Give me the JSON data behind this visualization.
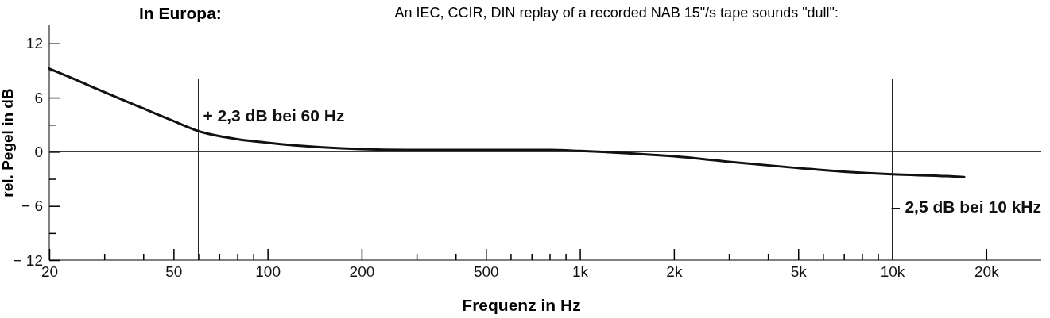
{
  "chart_data": {
    "type": "line",
    "title": "In Europa:",
    "subtitle": "An IEC, CCIR, DIN replay of a recorded NAB 15\"/s tape sounds \"dull\":",
    "xlabel": "Frequenz in Hz",
    "ylabel": "rel. Pegel in dB",
    "log": "x",
    "x": [
      20,
      25,
      30,
      40,
      50,
      60,
      80,
      100,
      150,
      200,
      300,
      500,
      800,
      1000,
      1500,
      2000,
      3000,
      5000,
      7000,
      10000,
      15000,
      17000
    ],
    "series": [
      {
        "color": "#111111",
        "values": [
          9.2,
          7.8,
          6.6,
          4.8,
          3.4,
          2.3,
          1.4,
          1.0,
          0.5,
          0.3,
          0.2,
          0.2,
          0.2,
          0.1,
          -0.2,
          -0.5,
          -1.1,
          -1.8,
          -2.2,
          -2.5,
          -2.7,
          -2.8
        ]
      }
    ],
    "xlim": [
      20,
      30000
    ],
    "xticks": [
      20,
      {
        "value": 30,
        "label": null
      },
      {
        "value": 40,
        "label": null
      },
      50,
      {
        "value": 60,
        "label": null
      },
      {
        "value": 70,
        "label": null
      },
      {
        "value": 80,
        "label": null
      },
      {
        "value": 90,
        "label": null
      },
      100,
      200,
      {
        "value": 300,
        "label": null
      },
      {
        "value": 400,
        "label": null
      },
      500,
      {
        "value": 600,
        "label": null
      },
      {
        "value": 700,
        "label": null
      },
      {
        "value": 800,
        "label": null
      },
      {
        "value": 900,
        "label": null
      },
      {
        "value": 1000,
        "label": "1k"
      },
      {
        "value": 2000,
        "label": "2k"
      },
      {
        "value": 3000,
        "label": null
      },
      {
        "value": 4000,
        "label": null
      },
      {
        "value": 5000,
        "label": "5k"
      },
      {
        "value": 6000,
        "label": null
      },
      {
        "value": 7000,
        "label": null
      },
      {
        "value": 8000,
        "label": null
      },
      {
        "value": 9000,
        "label": null
      },
      {
        "value": 10000,
        "label": "10k"
      },
      {
        "value": 20000,
        "label": "20k"
      }
    ],
    "ylim": [
      -12,
      14
    ],
    "yticks": [
      {
        "value": -12,
        "label": "− 12"
      },
      {
        "value": -9,
        "label": null
      },
      {
        "value": -6,
        "label": "− 6"
      },
      {
        "value": -3,
        "label": null
      },
      0,
      {
        "value": 3,
        "label": null
      },
      6,
      {
        "value": 9,
        "label": null
      },
      12
    ],
    "ref_lines": [
      {
        "axis": "y",
        "value": 0
      },
      {
        "axis": "x",
        "value": 60
      },
      {
        "axis": "x",
        "value": 10000
      }
    ],
    "annotations": [
      {
        "text": "+ 2,3 dB bei 60 Hz",
        "x": 60,
        "y": 2.3
      },
      {
        "text": "– 2,5 dB bei 10 kHz",
        "x": 10000,
        "y": -2.5
      }
    ],
    "line_style": "solid",
    "marker": "none"
  }
}
